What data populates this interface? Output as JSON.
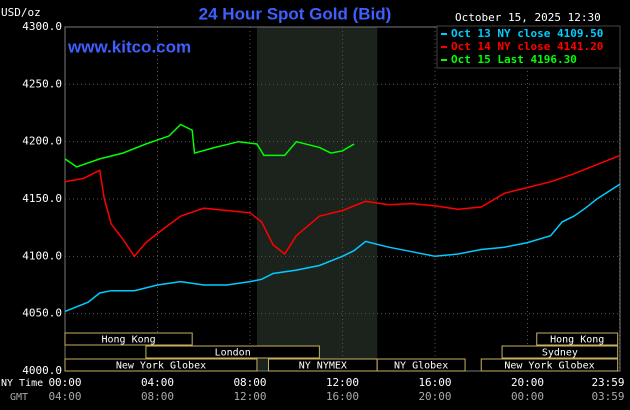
{
  "chart_data": {
    "type": "line",
    "title": "24 Hour Spot Gold (Bid)",
    "unit_label": "USD/oz",
    "timestamp": "October 15, 2025 12:30",
    "watermark": "www.kitco.com",
    "x_axis_label": "NY Time",
    "x2_axis_label": "GMT",
    "xlim": [
      0,
      24
    ],
    "xticks": [
      {
        "value": 0,
        "label": "00:00"
      },
      {
        "value": 4,
        "label": "04:00"
      },
      {
        "value": 8,
        "label": "08:00"
      },
      {
        "value": 12,
        "label": "12:00"
      },
      {
        "value": 16,
        "label": "16:00"
      },
      {
        "value": 20,
        "label": "20:00"
      },
      {
        "value": 23.98,
        "label": "23:59"
      }
    ],
    "gmt_labels": [
      "04:00",
      "08:00",
      "12:00",
      "16:00",
      "20:00",
      "00:00",
      "03:59"
    ],
    "ylim": [
      4000,
      4300
    ],
    "yticks": [
      {
        "value": 4000,
        "label": "4000.0"
      },
      {
        "value": 4050,
        "label": "4050.0"
      },
      {
        "value": 4100,
        "label": "4100.0"
      },
      {
        "value": 4150,
        "label": "4150.0"
      },
      {
        "value": 4200,
        "label": "4200.0"
      },
      {
        "value": 4250,
        "label": "4250.0"
      },
      {
        "value": 4300,
        "label": "4300.0"
      }
    ],
    "grid": true,
    "shaded_range": [
      8.3,
      13.5
    ],
    "sessions": [
      {
        "name": "Hong Kong",
        "start": 0,
        "end": 5.5
      },
      {
        "name": "London",
        "start": 3.5,
        "end": 11
      },
      {
        "name": "New York Globex",
        "start": 0,
        "end": 8.3
      },
      {
        "name": "NY NYMEX",
        "start": 8.8,
        "end": 13.5
      },
      {
        "name": "NY Globex",
        "start": 13.5,
        "end": 17.3
      },
      {
        "name": "Sydney",
        "start": 18.9,
        "end": 23.9
      },
      {
        "name": "Hong Kong",
        "start": 20.4,
        "end": 23.9
      },
      {
        "name": "New York Globex",
        "start": 18,
        "end": 23.9
      }
    ],
    "series": [
      {
        "name": "Oct 13 NY close 4109.50",
        "color": "#00ccff",
        "x": [
          0,
          1,
          1.5,
          2,
          3,
          4,
          5,
          6,
          7,
          8,
          8.5,
          9,
          10,
          11,
          12,
          12.5,
          13,
          14,
          15,
          16,
          17,
          18,
          19,
          20,
          21,
          21.5,
          22,
          22.5,
          23,
          24
        ],
        "values": [
          4052,
          4060,
          4068,
          4070,
          4070,
          4075,
          4078,
          4075,
          4075,
          4078,
          4080,
          4085,
          4088,
          4092,
          4100,
          4105,
          4113,
          4108,
          4104,
          4100,
          4102,
          4106,
          4108,
          4112,
          4118,
          4130,
          4135,
          4142,
          4150,
          4163
        ]
      },
      {
        "name": "Oct 14 NY close 4141.20",
        "color": "#ff0000",
        "x": [
          0,
          0.8,
          1.5,
          1.7,
          1.8,
          2,
          2.5,
          3,
          3.5,
          4,
          5,
          6,
          7,
          8,
          8.5,
          9,
          9.5,
          10,
          11,
          12,
          13,
          14,
          15,
          16,
          17,
          18,
          19,
          20,
          21,
          22,
          23,
          24
        ],
        "values": [
          4165,
          4168,
          4175,
          4150,
          4143,
          4128,
          4115,
          4100,
          4112,
          4120,
          4135,
          4142,
          4140,
          4138,
          4130,
          4110,
          4102,
          4118,
          4135,
          4140,
          4148,
          4145,
          4146,
          4144,
          4141,
          4143,
          4155,
          4160,
          4165,
          4172,
          4180,
          4188
        ]
      },
      {
        "name": "Oct 15 Last 4196.30",
        "color": "#00ff00",
        "x": [
          0,
          0.5,
          1.5,
          2.5,
          3.5,
          4.5,
          5,
          5.5,
          5.6,
          6.5,
          7.5,
          8.3,
          8.6,
          9.5,
          10,
          11,
          11.5,
          12,
          12.5
        ],
        "values": [
          4185,
          4178,
          4185,
          4190,
          4198,
          4205,
          4215,
          4210,
          4190,
          4195,
          4200,
          4198,
          4188,
          4188,
          4200,
          4195,
          4190,
          4192,
          4198
        ]
      }
    ]
  }
}
